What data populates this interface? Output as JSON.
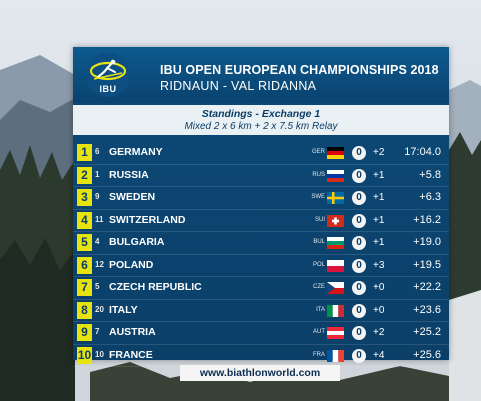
{
  "header": {
    "logo_text": "IBU",
    "title_line1": "IBU OPEN EUROPEAN CHAMPIONSHIPS 2018",
    "title_line2": "RIDNAUN - VAL RIDANNA"
  },
  "subheader": {
    "line1": "Standings - Exchange 1",
    "line2": "Mixed 2 x 6 km + 2 x 7.5 km Relay"
  },
  "rows": [
    {
      "rank": "1",
      "bib": "6",
      "name": "GERMANY",
      "nat": "GER",
      "circle": "0",
      "pen": "+2",
      "time": "17:04.0"
    },
    {
      "rank": "2",
      "bib": "1",
      "name": "RUSSIA",
      "nat": "RUS",
      "circle": "0",
      "pen": "+1",
      "time": "+5.8"
    },
    {
      "rank": "3",
      "bib": "9",
      "name": "SWEDEN",
      "nat": "SWE",
      "circle": "0",
      "pen": "+1",
      "time": "+6.3"
    },
    {
      "rank": "4",
      "bib": "11",
      "name": "SWITZERLAND",
      "nat": "SUI",
      "circle": "0",
      "pen": "+1",
      "time": "+16.2"
    },
    {
      "rank": "5",
      "bib": "4",
      "name": "BULGARIA",
      "nat": "BUL",
      "circle": "0",
      "pen": "+1",
      "time": "+19.0"
    },
    {
      "rank": "6",
      "bib": "12",
      "name": "POLAND",
      "nat": "POL",
      "circle": "0",
      "pen": "+3",
      "time": "+19.5"
    },
    {
      "rank": "7",
      "bib": "5",
      "name": "CZECH REPUBLIC",
      "nat": "CZE",
      "circle": "0",
      "pen": "+0",
      "time": "+22.2"
    },
    {
      "rank": "8",
      "bib": "20",
      "name": "ITALY",
      "nat": "ITA",
      "circle": "0",
      "pen": "+0",
      "time": "+23.6"
    },
    {
      "rank": "9",
      "bib": "7",
      "name": "AUSTRIA",
      "nat": "AUT",
      "circle": "0",
      "pen": "+2",
      "time": "+25.2"
    },
    {
      "rank": "10",
      "bib": "10",
      "name": "FRANCE",
      "nat": "FRA",
      "circle": "0",
      "pen": "+4",
      "time": "+25.6"
    }
  ],
  "footer": {
    "url": "www.biathlonworld.com"
  },
  "colors": {
    "panel_blue": "#0b3f68",
    "rank_yellow": "#e7e30f"
  }
}
